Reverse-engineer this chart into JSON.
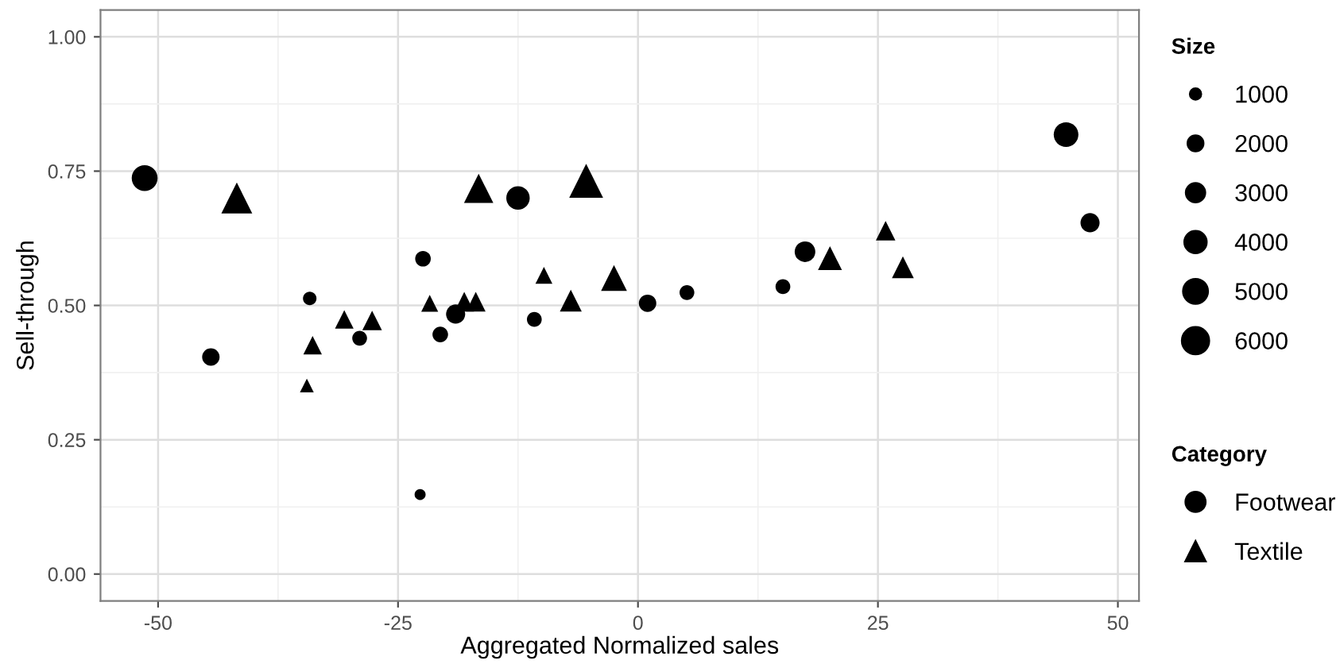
{
  "chart_data": {
    "type": "bubble",
    "xlabel": "Aggregated Normalized sales",
    "ylabel": "Sell-through",
    "xlim": [
      -56,
      52.2
    ],
    "ylim": [
      -0.05,
      1.05
    ],
    "xticks": [
      {
        "value": -50,
        "label": "-50"
      },
      {
        "value": -25,
        "label": "-25"
      },
      0,
      25,
      50
    ],
    "yticks": [
      {
        "value": 0,
        "label": "0.00"
      },
      {
        "value": 0.25,
        "label": "0.25"
      },
      {
        "value": 0.5,
        "label": "0.50"
      },
      {
        "value": 0.75,
        "label": "0.75"
      },
      {
        "value": 1,
        "label": "1.00"
      }
    ],
    "grid": true,
    "legend": "right",
    "legend_title": [
      "Size",
      "Category"
    ],
    "size_legend": [
      1000,
      2000,
      3000,
      4000,
      5000,
      6000
    ],
    "series": [
      {
        "name": "Footwear",
        "color": "#000000",
        "marker": "circle",
        "x": [
          -51.4,
          -44.5,
          -34.2,
          -29.0,
          -22.4,
          -22.7,
          -20.6,
          -19.0,
          -12.5,
          -10.8,
          1.0,
          5.1,
          15.1,
          17.4,
          44.6,
          47.1
        ],
        "values": [
          0.737,
          0.404,
          0.513,
          0.439,
          0.587,
          0.148,
          0.446,
          0.484,
          0.7,
          0.474,
          0.504,
          0.524,
          0.535,
          0.6,
          0.818,
          0.654
        ],
        "sizes": [
          5500,
          2500,
          1500,
          1800,
          2000,
          1000,
          2000,
          3000,
          4500,
          1800,
          2500,
          1800,
          1800,
          3500,
          5000,
          3000
        ]
      },
      {
        "name": "Textile",
        "color": "#000000",
        "marker": "triangle",
        "x": [
          -41.8,
          -34.5,
          -33.9,
          -30.6,
          -27.7,
          -21.7,
          -18.1,
          -16.9,
          -16.6,
          -9.8,
          -7.0,
          -5.4,
          -2.5,
          20.0,
          25.8,
          27.6
        ],
        "values": [
          0.7,
          0.351,
          0.426,
          0.474,
          0.472,
          0.504,
          0.507,
          0.507,
          0.718,
          0.556,
          0.509,
          0.732,
          0.551,
          0.588,
          0.639,
          0.571
        ],
        "sizes": [
          5000,
          1000,
          1800,
          1800,
          2000,
          1500,
          2000,
          2000,
          4500,
          1500,
          2500,
          6000,
          3500,
          3000,
          2000,
          2500
        ]
      }
    ]
  }
}
